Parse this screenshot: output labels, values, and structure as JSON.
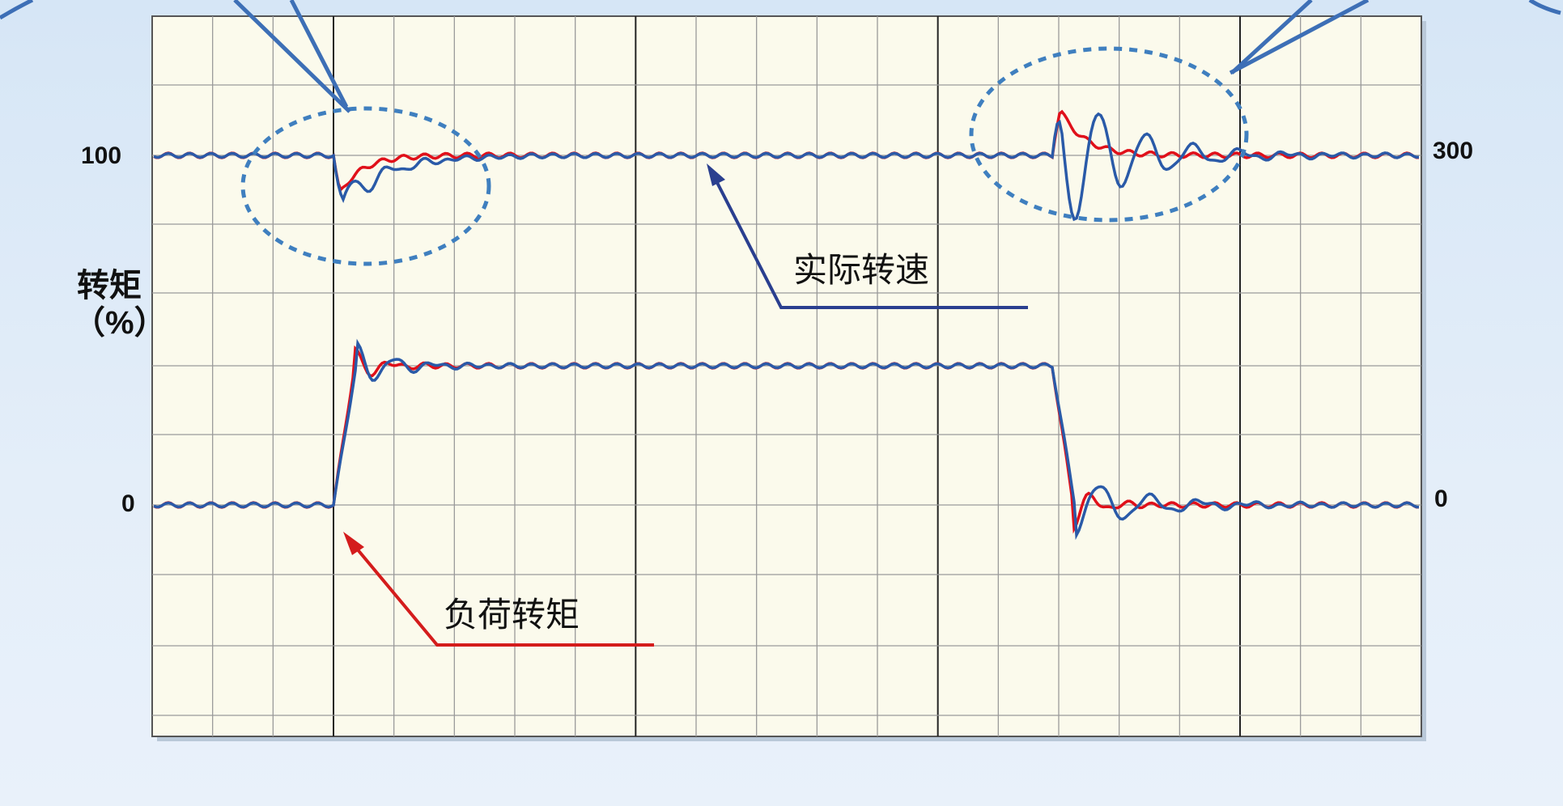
{
  "chart_data": {
    "type": "line",
    "left_axis": {
      "label": "转矩\n（%）",
      "ticks": [
        100,
        0
      ]
    },
    "right_axis": {
      "ticks": [
        300,
        0
      ]
    },
    "grid": true,
    "series": [
      {
        "color": "#e0101a"
      },
      {
        "color": "#2a5aa8"
      }
    ],
    "annotations": [
      {
        "text": "实际转速",
        "arrow_color": "#2a3f8f"
      },
      {
        "text": "负荷转矩",
        "arrow_color": "#d41c1c"
      }
    ],
    "highlight_color": "#3f7fbf"
  }
}
